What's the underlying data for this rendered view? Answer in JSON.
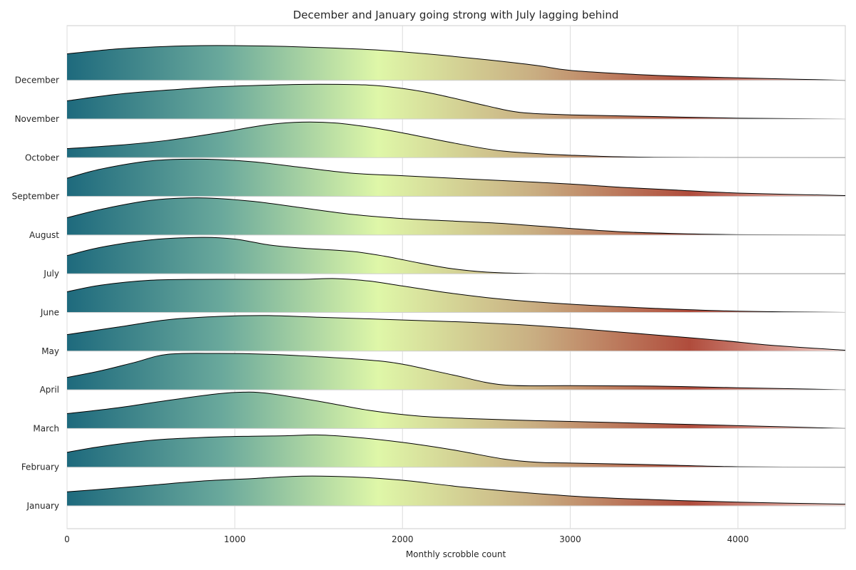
{
  "chart_data": {
    "type": "ridgeline",
    "title": "December and January going strong with July lagging behind",
    "xlabel": "Monthly scrobble count",
    "ylabel": "",
    "xlim": [
      0,
      4640
    ],
    "xticks": [
      0,
      1000,
      2000,
      3000,
      4000
    ],
    "grid": true,
    "colormap": [
      "#1e6a7d",
      "#6aa99c",
      "#dff7a8",
      "#c9ae82",
      "#b04c3c",
      "#f4cfc8"
    ],
    "series": [
      {
        "name": "January",
        "x": [
          0,
          200,
          500,
          800,
          1100,
          1400,
          1700,
          2000,
          2400,
          3000,
          3500,
          4000,
          4640
        ],
        "y": [
          0.34,
          0.4,
          0.5,
          0.6,
          0.66,
          0.72,
          0.7,
          0.62,
          0.44,
          0.24,
          0.15,
          0.09,
          0.04
        ]
      },
      {
        "name": "February",
        "x": [
          0,
          200,
          500,
          800,
          1100,
          1300,
          1500,
          1700,
          2000,
          2300,
          2600,
          2800,
          3000,
          3500,
          4000,
          4640
        ],
        "y": [
          0.36,
          0.5,
          0.65,
          0.72,
          0.75,
          0.76,
          0.78,
          0.73,
          0.6,
          0.42,
          0.2,
          0.12,
          0.1,
          0.06,
          0.01,
          0.0
        ]
      },
      {
        "name": "March",
        "x": [
          0,
          300,
          600,
          900,
          1050,
          1200,
          1500,
          1800,
          2100,
          2400,
          2700,
          3000,
          3500,
          4000,
          4640
        ],
        "y": [
          0.36,
          0.5,
          0.68,
          0.84,
          0.88,
          0.85,
          0.66,
          0.44,
          0.3,
          0.24,
          0.2,
          0.17,
          0.12,
          0.07,
          0.0
        ]
      },
      {
        "name": "April",
        "x": [
          0,
          200,
          400,
          600,
          900,
          1200,
          1500,
          1800,
          2000,
          2300,
          2600,
          3000,
          3500,
          4000,
          4640
        ],
        "y": [
          0.3,
          0.46,
          0.66,
          0.86,
          0.88,
          0.86,
          0.8,
          0.72,
          0.62,
          0.36,
          0.12,
          0.1,
          0.09,
          0.05,
          0.0
        ]
      },
      {
        "name": "May",
        "x": [
          0,
          300,
          600,
          900,
          1200,
          1500,
          1800,
          2100,
          2400,
          2700,
          3000,
          3300,
          3600,
          3900,
          4200,
          4640
        ],
        "y": [
          0.4,
          0.58,
          0.76,
          0.84,
          0.86,
          0.82,
          0.78,
          0.74,
          0.7,
          0.64,
          0.56,
          0.46,
          0.36,
          0.26,
          0.14,
          0.02
        ]
      },
      {
        "name": "June",
        "x": [
          0,
          200,
          500,
          800,
          1100,
          1400,
          1600,
          1800,
          2000,
          2300,
          2600,
          3000,
          3500,
          4000,
          4640
        ],
        "y": [
          0.5,
          0.66,
          0.78,
          0.8,
          0.8,
          0.8,
          0.82,
          0.76,
          0.64,
          0.46,
          0.32,
          0.2,
          0.1,
          0.03,
          0.0
        ]
      },
      {
        "name": "July",
        "x": [
          0,
          200,
          500,
          800,
          1000,
          1200,
          1400,
          1700,
          1900,
          2100,
          2300,
          2500,
          2700,
          3000,
          3500,
          4640
        ],
        "y": [
          0.44,
          0.64,
          0.82,
          0.88,
          0.84,
          0.7,
          0.62,
          0.54,
          0.42,
          0.26,
          0.12,
          0.04,
          0.01,
          0.0,
          0.0,
          0.0
        ]
      },
      {
        "name": "August",
        "x": [
          0,
          200,
          500,
          800,
          1100,
          1400,
          1700,
          2000,
          2300,
          2600,
          3000,
          3300,
          3600,
          4000,
          4640
        ],
        "y": [
          0.42,
          0.62,
          0.84,
          0.9,
          0.82,
          0.66,
          0.5,
          0.4,
          0.34,
          0.28,
          0.16,
          0.08,
          0.04,
          0.01,
          0.0
        ]
      },
      {
        "name": "September",
        "x": [
          0,
          200,
          500,
          800,
          1100,
          1400,
          1700,
          2000,
          2300,
          2600,
          3000,
          3300,
          3600,
          4000,
          4640
        ],
        "y": [
          0.44,
          0.66,
          0.86,
          0.9,
          0.84,
          0.7,
          0.56,
          0.5,
          0.44,
          0.38,
          0.3,
          0.22,
          0.16,
          0.08,
          0.02
        ]
      },
      {
        "name": "October",
        "x": [
          0,
          300,
          600,
          900,
          1200,
          1400,
          1600,
          1800,
          2000,
          2300,
          2600,
          3000,
          3500,
          4640
        ],
        "y": [
          0.22,
          0.3,
          0.42,
          0.6,
          0.8,
          0.86,
          0.84,
          0.74,
          0.6,
          0.36,
          0.16,
          0.06,
          0.01,
          0.0
        ]
      },
      {
        "name": "November",
        "x": [
          0,
          300,
          600,
          900,
          1200,
          1500,
          1800,
          2000,
          2200,
          2500,
          2700,
          3000,
          3500,
          4000,
          4640
        ],
        "y": [
          0.44,
          0.6,
          0.7,
          0.78,
          0.82,
          0.84,
          0.82,
          0.74,
          0.6,
          0.32,
          0.16,
          0.1,
          0.06,
          0.02,
          0.0
        ]
      },
      {
        "name": "December",
        "x": [
          0,
          300,
          600,
          800,
          1000,
          1300,
          1600,
          1900,
          2200,
          2500,
          2800,
          3000,
          3400,
          3800,
          4200,
          4640
        ],
        "y": [
          0.64,
          0.76,
          0.82,
          0.84,
          0.84,
          0.82,
          0.78,
          0.72,
          0.62,
          0.5,
          0.36,
          0.24,
          0.14,
          0.08,
          0.04,
          0.0
        ]
      }
    ]
  }
}
